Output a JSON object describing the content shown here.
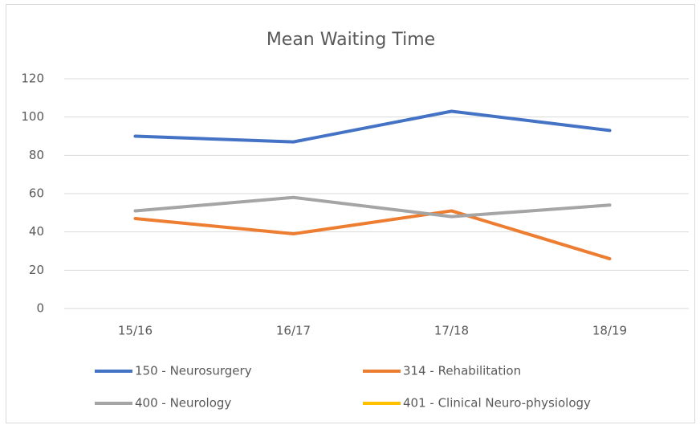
{
  "chart_data": {
    "type": "line",
    "title": "Mean Waiting Time",
    "categories": [
      "15/16",
      "16/17",
      "17/18",
      "18/19"
    ],
    "series": [
      {
        "name": "150 - Neurosurgery",
        "color": "#4472c4",
        "values": [
          90,
          87,
          103,
          93
        ]
      },
      {
        "name": "314 - Rehabilitation",
        "color": "#ed7d31",
        "values": [
          47,
          39,
          51,
          26
        ]
      },
      {
        "name": "400 - Neurology",
        "color": "#a5a5a5",
        "values": [
          51,
          58,
          48,
          54
        ]
      },
      {
        "name": "401 - Clinical Neuro-physiology",
        "color": "#ffc000",
        "values": [
          null,
          null,
          null,
          null
        ]
      }
    ],
    "ylim": [
      0,
      120
    ],
    "yticks": [
      0,
      20,
      40,
      60,
      80,
      100,
      120
    ],
    "grid": true,
    "legend": "bottom"
  }
}
